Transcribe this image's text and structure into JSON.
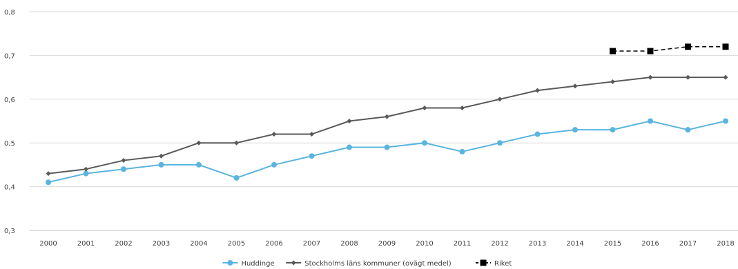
{
  "chart_data": {
    "type": "line",
    "title": "",
    "xlabel": "",
    "ylabel": "",
    "categories": [
      "2000",
      "2001",
      "2002",
      "2003",
      "2004",
      "2005",
      "2006",
      "2007",
      "2008",
      "2009",
      "2010",
      "2011",
      "2012",
      "2013",
      "2014",
      "2015",
      "2016",
      "2017",
      "2018"
    ],
    "y_ticks": [
      "0,3",
      "0,4",
      "0,5",
      "0,6",
      "0,7",
      "0,8"
    ],
    "ylim": [
      0.3,
      0.8
    ],
    "grid": "horizontal",
    "legend_position": "bottom",
    "series": [
      {
        "name": "Huddinge",
        "color": "#5AB4E0",
        "marker": "circle",
        "dashed": false,
        "values": [
          0.41,
          0.43,
          0.44,
          0.45,
          0.45,
          0.42,
          0.45,
          0.47,
          0.49,
          0.49,
          0.5,
          0.48,
          0.5,
          0.52,
          0.53,
          0.53,
          0.55,
          0.53,
          0.55
        ]
      },
      {
        "name": "Stockholms läns kommuner (ovägt medel)",
        "color": "#595959",
        "marker": "diamond",
        "dashed": false,
        "values": [
          0.43,
          0.44,
          0.46,
          0.47,
          0.5,
          0.5,
          0.52,
          0.52,
          0.55,
          0.56,
          0.58,
          0.58,
          0.6,
          0.62,
          0.63,
          0.64,
          0.65,
          0.65,
          0.65
        ]
      },
      {
        "name": "Riket",
        "color": "#000000",
        "marker": "square",
        "dashed": true,
        "values": [
          null,
          null,
          null,
          null,
          null,
          null,
          null,
          null,
          null,
          null,
          null,
          null,
          null,
          null,
          null,
          0.71,
          0.71,
          0.72,
          0.72
        ]
      }
    ]
  }
}
